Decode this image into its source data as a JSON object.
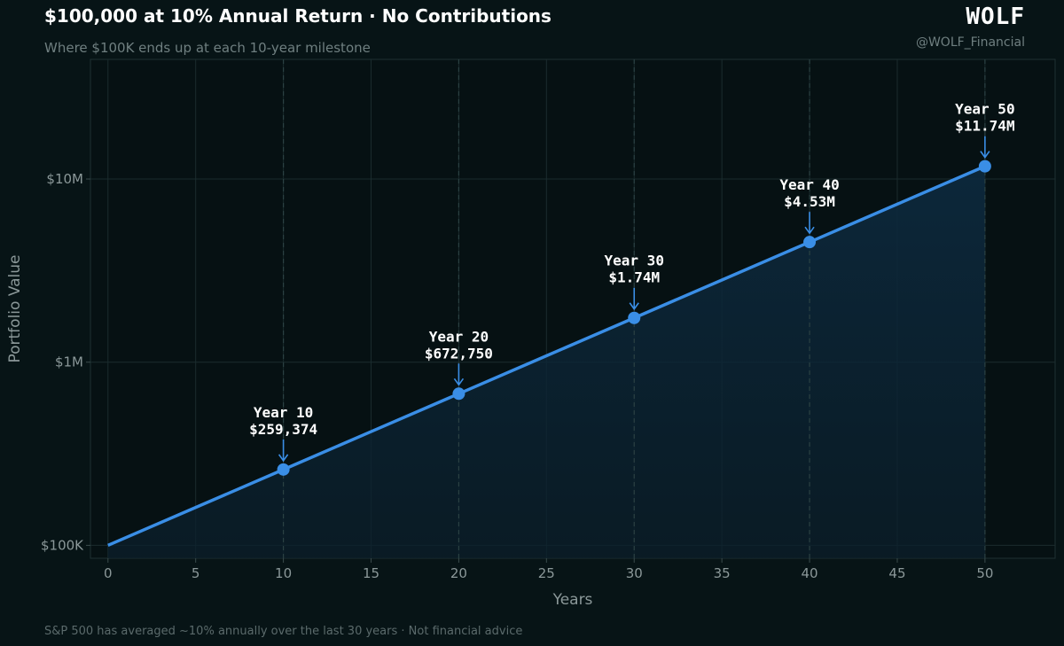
{
  "header": {
    "title": "$100,000 at 10% Annual Return · No Contributions",
    "subtitle": "Where $100K ends up at each 10-year milestone",
    "brand": "WOLF",
    "handle": "@WOLF_Financial"
  },
  "footer": {
    "note": "S&P 500 has averaged ~10% annually over the last 30 years  ·  Not financial advice"
  },
  "colors": {
    "background": "#071416",
    "line": "#3a8ee6",
    "grid": "#1b2c2e",
    "milestone_line": "#2b4143"
  },
  "chart_data": {
    "type": "line",
    "title": "$100,000 at 10% Annual Return · No Contributions",
    "xlabel": "Years",
    "ylabel": "Portfolio Value",
    "y_scale": "log",
    "xlim": [
      -1,
      54
    ],
    "ylim": [
      85000,
      45000000
    ],
    "x_ticks": [
      0,
      5,
      10,
      15,
      20,
      25,
      30,
      35,
      40,
      45,
      50
    ],
    "y_ticks": [
      {
        "value": 100000,
        "label": "$100K"
      },
      {
        "value": 1000000,
        "label": "$1M"
      },
      {
        "value": 10000000,
        "label": "$10M"
      }
    ],
    "grid": true,
    "series": [
      {
        "x": [
          0,
          5,
          10,
          15,
          20,
          25,
          30,
          35,
          40,
          45,
          50
        ],
        "values": [
          100000,
          161051,
          259374,
          417725,
          672750,
          1083471,
          1744940,
          2810244,
          4525926,
          7289048,
          11739085
        ]
      }
    ],
    "milestones": [
      {
        "x": 10,
        "y": 259374,
        "label_line1": "Year 10",
        "label_line2": "$259,374"
      },
      {
        "x": 20,
        "y": 672750,
        "label_line1": "Year 20",
        "label_line2": "$672,750"
      },
      {
        "x": 30,
        "y": 1744940,
        "label_line1": "Year 30",
        "label_line2": "$1.74M"
      },
      {
        "x": 40,
        "y": 4525926,
        "label_line1": "Year 40",
        "label_line2": "$4.53M"
      },
      {
        "x": 50,
        "y": 11739085,
        "label_line1": "Year 50",
        "label_line2": "$11.74M"
      }
    ]
  }
}
